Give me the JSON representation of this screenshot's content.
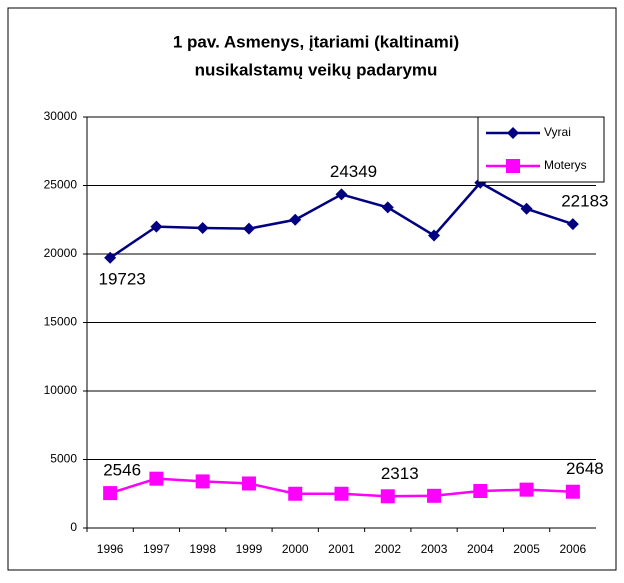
{
  "chart_data": {
    "type": "line",
    "title": [
      "1 pav. Asmenys, įtariami (kaltinami)",
      "nusikalstamų veikų padarymu"
    ],
    "categories": [
      "1996",
      "1997",
      "1998",
      "1999",
      "2000",
      "2001",
      "2002",
      "2003",
      "2004",
      "2005",
      "2006"
    ],
    "series": [
      {
        "name": "Vyrai",
        "color": "#000080",
        "marker": "diamond",
        "values": [
          19723,
          22000,
          21900,
          21850,
          22500,
          24349,
          23400,
          21350,
          25200,
          23300,
          22183
        ],
        "labeled": [
          0,
          5,
          10
        ]
      },
      {
        "name": "Moterys",
        "color": "#ff00ff",
        "marker": "square",
        "values": [
          2546,
          3600,
          3400,
          3250,
          2500,
          2500,
          2313,
          2350,
          2700,
          2800,
          2648
        ],
        "labeled": [
          0,
          6,
          10
        ]
      }
    ],
    "ylim": [
      0,
      30000
    ],
    "yticks": [
      0,
      5000,
      10000,
      15000,
      20000,
      25000,
      30000
    ],
    "grid": true,
    "legend": "upper right"
  }
}
